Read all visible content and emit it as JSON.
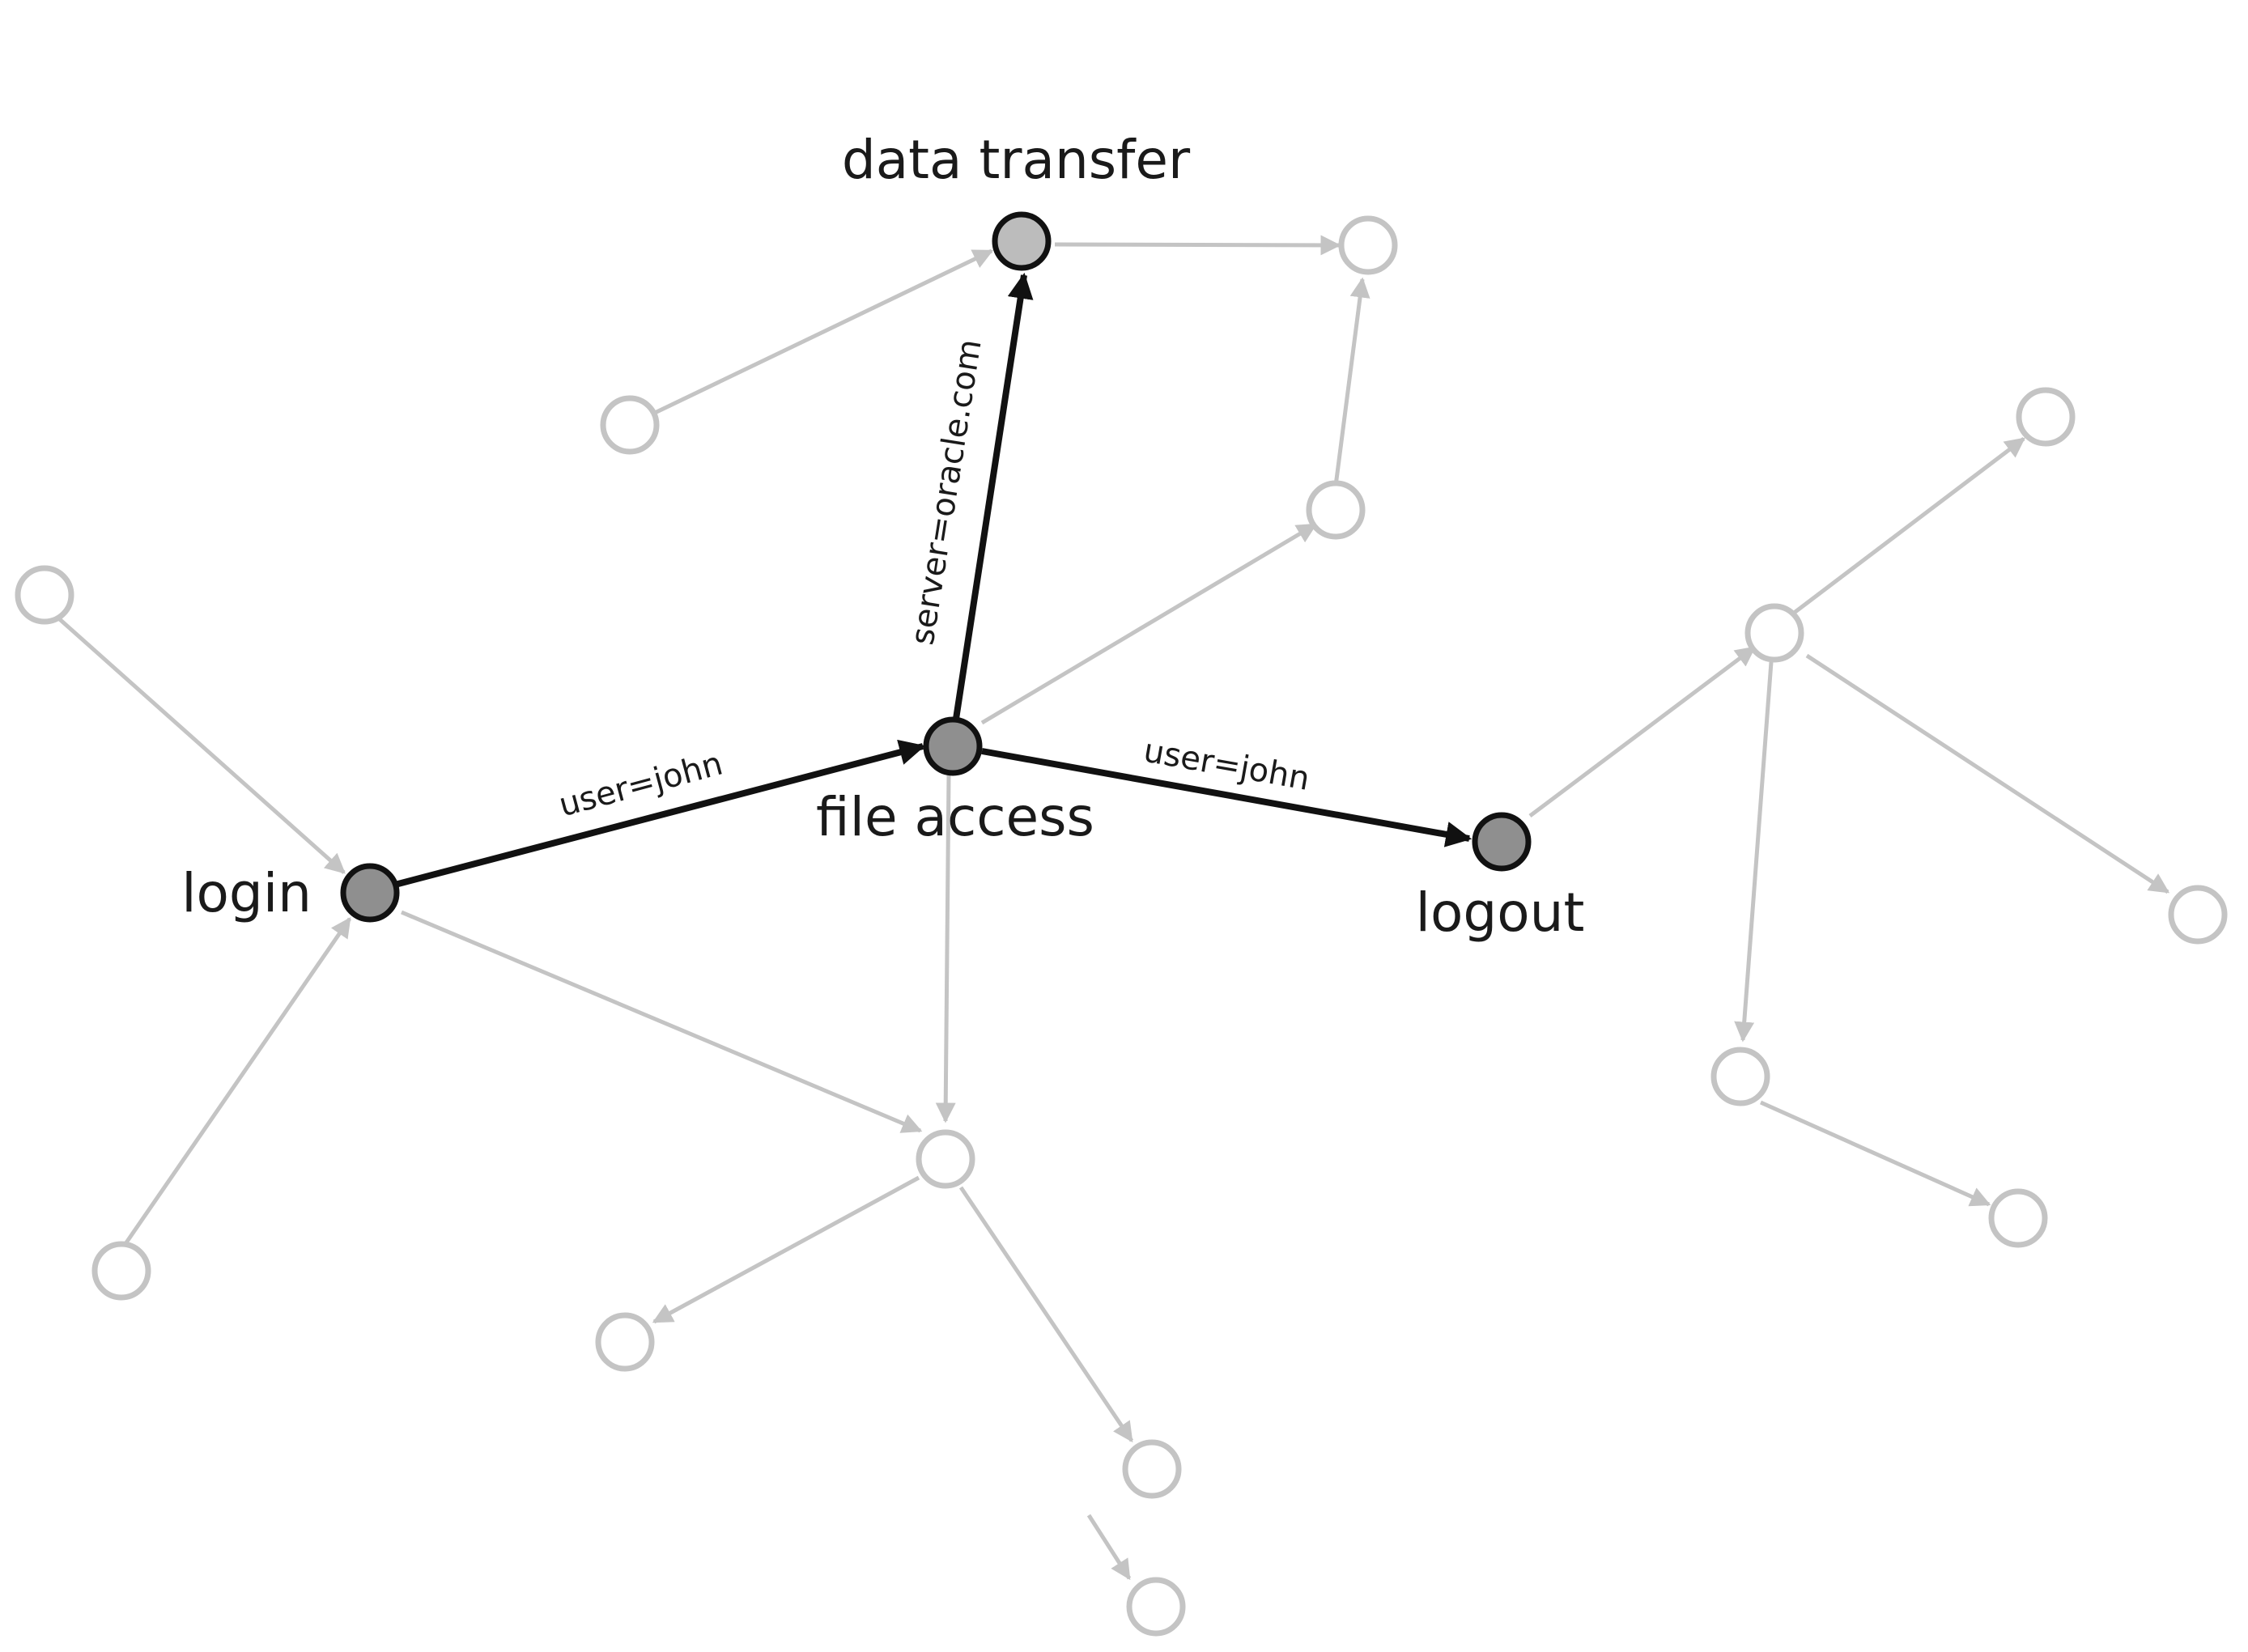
{
  "diagram": {
    "type": "directed-graph",
    "highlighted_nodes": {
      "login": "login",
      "file_access": "file access",
      "data_transfer": "data transfer",
      "logout": "logout"
    },
    "highlighted_edges": {
      "login_to_file_access": "user=john",
      "file_access_to_data_transfer": "server=oracle.com",
      "file_access_to_logout": "user=john"
    },
    "colors": {
      "highlight": "#111111",
      "faded": "#c4c4c4",
      "highlight_node_fill": "#8f8f8f"
    }
  }
}
